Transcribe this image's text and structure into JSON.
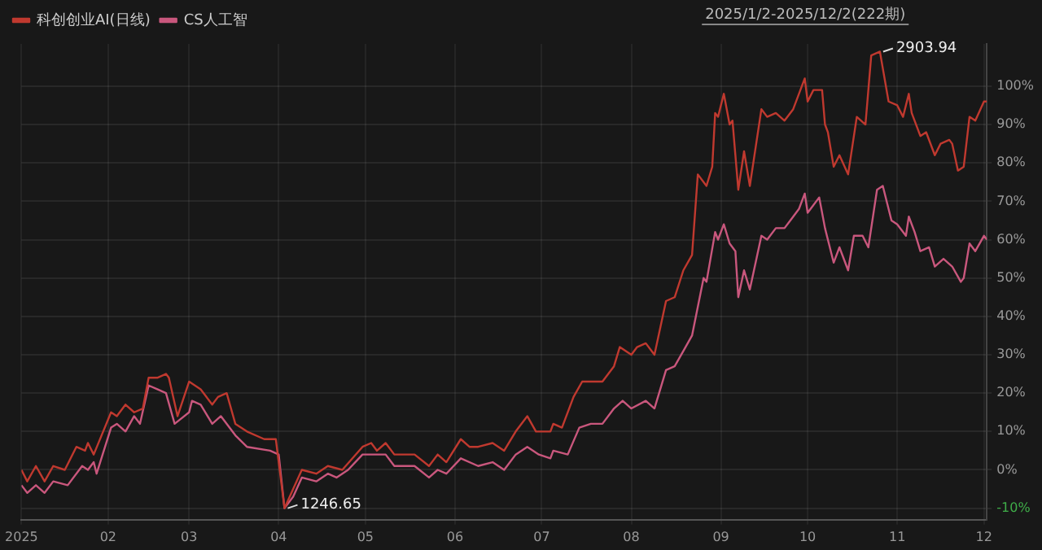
{
  "chart_data": {
    "type": "line",
    "legend": "top left",
    "grid": true,
    "xlim": [
      "2025-01-02",
      "2025-12-02"
    ],
    "xticks": [
      {
        "value": "2025-01-02",
        "label": "2025"
      },
      {
        "value": "2025-02-01",
        "label": "02"
      },
      {
        "value": "2025-03-01",
        "label": "03"
      },
      {
        "value": "2025-04-01",
        "label": "04"
      },
      {
        "value": "2025-05-01",
        "label": "05"
      },
      {
        "value": "2025-06-01",
        "label": "06"
      },
      {
        "value": "2025-07-01",
        "label": "07"
      },
      {
        "value": "2025-08-01",
        "label": "08"
      },
      {
        "value": "2025-09-01",
        "label": "09"
      },
      {
        "value": "2025-10-01",
        "label": "10"
      },
      {
        "value": "2025-11-01",
        "label": "11"
      },
      {
        "value": "2025-12-01",
        "label": "12"
      }
    ],
    "ylim": [
      -13,
      111
    ],
    "yticks": [
      {
        "value": -10,
        "label": "-10%"
      },
      {
        "value": 0,
        "label": "0%"
      },
      {
        "value": 10,
        "label": "10%"
      },
      {
        "value": 20,
        "label": "20%"
      },
      {
        "value": 30,
        "label": "30%"
      },
      {
        "value": 40,
        "label": "40%"
      },
      {
        "value": 50,
        "label": "50%"
      },
      {
        "value": 60,
        "label": "60%"
      },
      {
        "value": 70,
        "label": "70%"
      },
      {
        "value": 80,
        "label": "80%"
      },
      {
        "value": 90,
        "label": "90%"
      },
      {
        "value": 100,
        "label": "100%"
      }
    ],
    "annotations": [
      "2025/1/2-2025/12/2(222期)",
      {
        "text": "2903.94",
        "x": "2025-10-26",
        "y": 109
      },
      {
        "text": "1246.65",
        "x": "2025-04-03",
        "y": -10
      }
    ],
    "series": [
      {
        "name": "科创创业AI(日线)",
        "color": "#c0392f",
        "x": [
          "2025-01-02",
          "2025-01-04",
          "2025-01-07",
          "2025-01-10",
          "2025-01-13",
          "2025-01-17",
          "2025-01-21",
          "2025-01-24",
          "2025-01-25",
          "2025-01-27",
          "2025-02-02",
          "2025-02-04",
          "2025-02-07",
          "2025-02-10",
          "2025-02-13",
          "2025-02-15",
          "2025-02-18",
          "2025-02-21",
          "2025-02-22",
          "2025-02-25",
          "2025-03-01",
          "2025-03-05",
          "2025-03-09",
          "2025-03-11",
          "2025-03-14",
          "2025-03-17",
          "2025-03-21",
          "2025-03-27",
          "2025-03-31",
          "2025-04-03",
          "2025-04-06",
          "2025-04-09",
          "2025-04-14",
          "2025-04-18",
          "2025-04-23",
          "2025-04-30",
          "2025-05-03",
          "2025-05-05",
          "2025-05-08",
          "2025-05-11",
          "2025-05-18",
          "2025-05-23",
          "2025-05-26",
          "2025-05-29",
          "2025-06-03",
          "2025-06-06",
          "2025-06-09",
          "2025-06-14",
          "2025-06-18",
          "2025-06-22",
          "2025-06-26",
          "2025-06-29",
          "2025-07-04",
          "2025-07-05",
          "2025-07-08",
          "2025-07-12",
          "2025-07-15",
          "2025-07-19",
          "2025-07-22",
          "2025-07-26",
          "2025-07-28",
          "2025-08-01",
          "2025-08-03",
          "2025-08-06",
          "2025-08-09",
          "2025-08-13",
          "2025-08-16",
          "2025-08-19",
          "2025-08-22",
          "2025-08-24",
          "2025-08-27",
          "2025-08-29",
          "2025-08-30",
          "2025-08-31",
          "2025-09-02",
          "2025-09-04",
          "2025-09-05",
          "2025-09-07",
          "2025-09-09",
          "2025-09-11",
          "2025-09-15",
          "2025-09-17",
          "2025-09-20",
          "2025-09-23",
          "2025-09-26",
          "2025-09-30",
          "2025-10-01",
          "2025-10-03",
          "2025-10-06",
          "2025-10-07",
          "2025-10-08",
          "2025-10-10",
          "2025-10-12",
          "2025-10-15",
          "2025-10-18",
          "2025-10-21",
          "2025-10-23",
          "2025-10-26",
          "2025-10-29",
          "2025-11-01",
          "2025-11-03",
          "2025-11-05",
          "2025-11-06",
          "2025-11-09",
          "2025-11-11",
          "2025-11-14",
          "2025-11-16",
          "2025-11-19",
          "2025-11-20",
          "2025-11-22",
          "2025-11-24",
          "2025-11-26",
          "2025-11-28",
          "2025-12-01",
          "2025-12-02"
        ],
        "values": [
          0,
          -3,
          1,
          -3,
          1,
          0,
          6,
          5,
          7,
          4,
          15,
          14,
          17,
          15,
          16,
          24,
          24,
          25,
          24,
          14,
          23,
          21,
          17,
          19,
          20,
          12,
          10,
          8,
          8,
          -10,
          -5,
          0,
          -1,
          1,
          0,
          6,
          7,
          5,
          7,
          4,
          4,
          1,
          4,
          2,
          8,
          6,
          6,
          7,
          5,
          10,
          14,
          10,
          10,
          12,
          11,
          19,
          23,
          23,
          23,
          27,
          32,
          30,
          32,
          33,
          30,
          44,
          45,
          52,
          56,
          77,
          74,
          79,
          93,
          92,
          98,
          90,
          91,
          73,
          83,
          74,
          94,
          92,
          93,
          91,
          94,
          102,
          96,
          99,
          99,
          90,
          88,
          79,
          82,
          77,
          92,
          90,
          108,
          109,
          96,
          95,
          92,
          98,
          93,
          87,
          88,
          82,
          85,
          86,
          85,
          78,
          79,
          92,
          91,
          96,
          96
        ]
      },
      {
        "name": "CS人工智",
        "color": "#c9577d",
        "x": [
          "2025-01-02",
          "2025-01-04",
          "2025-01-07",
          "2025-01-10",
          "2025-01-13",
          "2025-01-18",
          "2025-01-23",
          "2025-01-25",
          "2025-01-27",
          "2025-01-28",
          "2025-02-02",
          "2025-02-04",
          "2025-02-07",
          "2025-02-10",
          "2025-02-12",
          "2025-02-15",
          "2025-02-18",
          "2025-02-21",
          "2025-02-24",
          "2025-03-01",
          "2025-03-02",
          "2025-03-05",
          "2025-03-09",
          "2025-03-12",
          "2025-03-17",
          "2025-03-21",
          "2025-03-29",
          "2025-04-01",
          "2025-04-03",
          "2025-04-06",
          "2025-04-09",
          "2025-04-14",
          "2025-04-18",
          "2025-04-21",
          "2025-04-25",
          "2025-04-30",
          "2025-05-03",
          "2025-05-08",
          "2025-05-11",
          "2025-05-18",
          "2025-05-23",
          "2025-05-26",
          "2025-05-29",
          "2025-06-03",
          "2025-06-09",
          "2025-06-14",
          "2025-06-18",
          "2025-06-22",
          "2025-06-26",
          "2025-06-30",
          "2025-07-04",
          "2025-07-05",
          "2025-07-10",
          "2025-07-14",
          "2025-07-18",
          "2025-07-22",
          "2025-07-26",
          "2025-07-29",
          "2025-08-01",
          "2025-08-06",
          "2025-08-09",
          "2025-08-13",
          "2025-08-16",
          "2025-08-19",
          "2025-08-22",
          "2025-08-26",
          "2025-08-27",
          "2025-08-30",
          "2025-08-31",
          "2025-09-02",
          "2025-09-04",
          "2025-09-06",
          "2025-09-07",
          "2025-09-09",
          "2025-09-11",
          "2025-09-15",
          "2025-09-17",
          "2025-09-20",
          "2025-09-23",
          "2025-09-25",
          "2025-09-28",
          "2025-09-30",
          "2025-10-01",
          "2025-10-05",
          "2025-10-07",
          "2025-10-10",
          "2025-10-12",
          "2025-10-15",
          "2025-10-17",
          "2025-10-20",
          "2025-10-22",
          "2025-10-25",
          "2025-10-27",
          "2025-10-30",
          "2025-11-01",
          "2025-11-04",
          "2025-11-05",
          "2025-11-07",
          "2025-11-09",
          "2025-11-12",
          "2025-11-14",
          "2025-11-17",
          "2025-11-20",
          "2025-11-23",
          "2025-11-24",
          "2025-11-26",
          "2025-11-28",
          "2025-12-01",
          "2025-12-02"
        ],
        "values": [
          -4,
          -6,
          -4,
          -6,
          -3,
          -4,
          1,
          0,
          2,
          -1,
          11,
          12,
          10,
          14,
          12,
          22,
          21,
          20,
          12,
          15,
          18,
          17,
          12,
          14,
          9,
          6,
          5,
          4,
          -10,
          -7,
          -2,
          -3,
          -1,
          -2,
          0,
          4,
          4,
          4,
          1,
          1,
          -2,
          0,
          -1,
          3,
          1,
          2,
          0,
          4,
          6,
          4,
          3,
          5,
          4,
          11,
          12,
          12,
          16,
          18,
          16,
          18,
          16,
          26,
          27,
          31,
          35,
          50,
          49,
          62,
          60,
          64,
          59,
          57,
          45,
          52,
          47,
          61,
          60,
          63,
          63,
          65,
          68,
          72,
          67,
          71,
          63,
          54,
          58,
          52,
          61,
          61,
          58,
          73,
          74,
          65,
          64,
          61,
          66,
          62,
          57,
          58,
          53,
          55,
          53,
          49,
          50,
          59,
          57,
          61,
          60
        ]
      }
    ]
  }
}
